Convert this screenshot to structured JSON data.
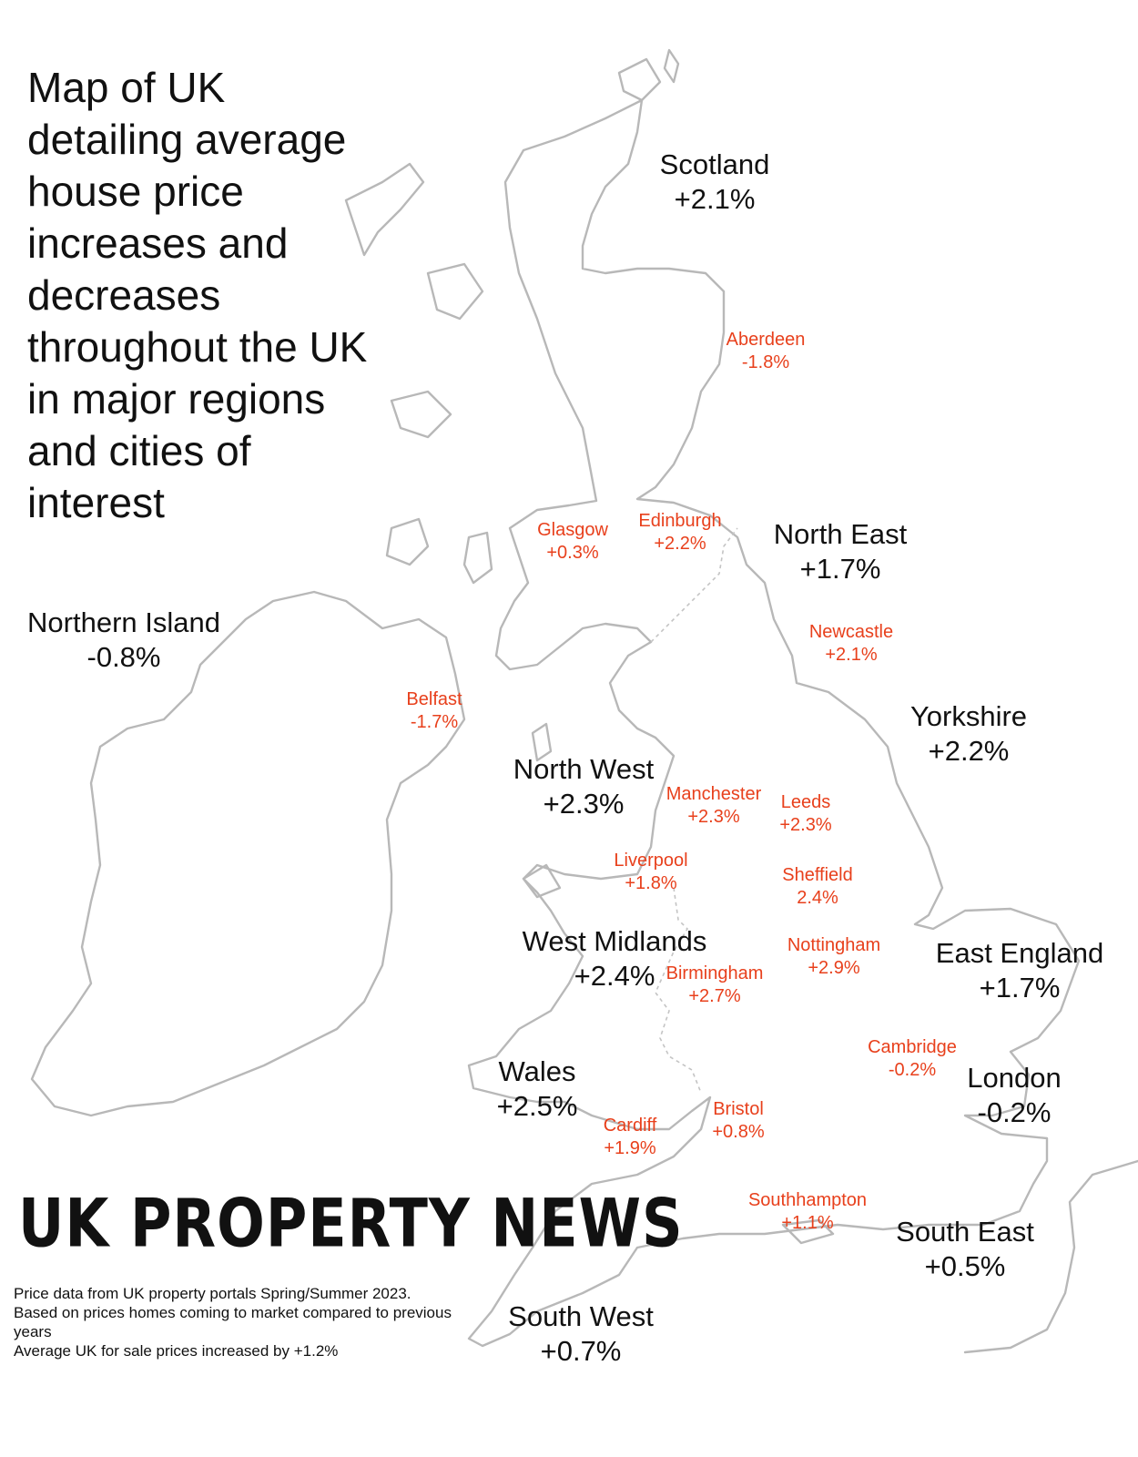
{
  "title": "Map of UK detailing average house price increases and decreases throughout the UK in major regions and cities of interest",
  "regions": [
    {
      "name": "Scotland",
      "change": "+2.1%"
    },
    {
      "name": "North East",
      "change": "+1.7%"
    },
    {
      "name": "Northern Island",
      "change": "-0.8%"
    },
    {
      "name": "Yorkshire",
      "change": "+2.2%"
    },
    {
      "name": "North West",
      "change": "+2.3%"
    },
    {
      "name": "West Midlands",
      "change": "+2.4%"
    },
    {
      "name": "East England",
      "change": "+1.7%"
    },
    {
      "name": "Wales",
      "change": "+2.5%"
    },
    {
      "name": "London",
      "change": "-0.2%"
    },
    {
      "name": "South East",
      "change": "+0.5%"
    },
    {
      "name": "South West",
      "change": "+0.7%"
    }
  ],
  "cities": [
    {
      "name": "Aberdeen",
      "change": "-1.8%"
    },
    {
      "name": "Glasgow",
      "change": "+0.3%"
    },
    {
      "name": "Edinburgh",
      "change": "+2.2%"
    },
    {
      "name": "Newcastle",
      "change": "+2.1%"
    },
    {
      "name": "Belfast",
      "change": "-1.7%"
    },
    {
      "name": "Manchester",
      "change": "+2.3%"
    },
    {
      "name": "Leeds",
      "change": "+2.3%"
    },
    {
      "name": "Liverpool",
      "change": "+1.8%"
    },
    {
      "name": "Sheffield",
      "change": "2.4%"
    },
    {
      "name": "Nottingham",
      "change": "+2.9%"
    },
    {
      "name": "Birmingham",
      "change": "+2.7%"
    },
    {
      "name": "Cambridge",
      "change": "-0.2%"
    },
    {
      "name": "Bristol",
      "change": "+0.8%"
    },
    {
      "name": "Cardiff",
      "change": "+1.9%"
    },
    {
      "name": "Southhampton",
      "change": "+1.1%"
    }
  ],
  "brand": "UK PROPERTY NEWS",
  "footnote": {
    "line1": "Price data from UK property portals Spring/Summer 2023.",
    "line2": "Based on prices homes coming to market compared to previous years",
    "line3": "Average UK for sale prices increased by +1.2%"
  },
  "colors": {
    "region_text": "#111111",
    "city_text": "#e8401c",
    "outline": "#b8b8b8"
  }
}
